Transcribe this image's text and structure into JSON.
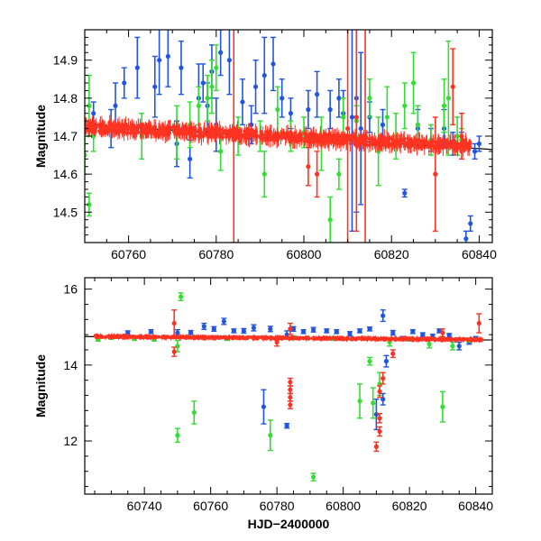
{
  "chart_data": [
    {
      "type": "scatter",
      "panel": "top",
      "title": "",
      "xlabel": "",
      "ylabel": "Magnitude",
      "xlim": [
        60750,
        60843
      ],
      "ylim": [
        14.98,
        14.42
      ],
      "y_inverted": true,
      "x_ticks": [
        60760,
        60780,
        60800,
        60820,
        60840
      ],
      "y_ticks": [
        14.5,
        14.6,
        14.7,
        14.8,
        14.9
      ],
      "grid": false,
      "legend": "none",
      "trend_line": {
        "x": [
          60750,
          60843
        ],
        "y": [
          14.73,
          14.665
        ]
      },
      "series": [
        {
          "color": "#2255dd",
          "points": [
            [
              60752,
              14.76,
              0.03
            ],
            [
              60756,
              14.72,
              0.05
            ],
            [
              60757,
              14.78,
              0.06
            ],
            [
              60759,
              14.84,
              0.04
            ],
            [
              60762,
              14.88,
              0.08
            ],
            [
              60766,
              14.83,
              0.08
            ],
            [
              60767,
              14.9,
              0.09
            ],
            [
              60769,
              14.91,
              0.08
            ],
            [
              60771,
              14.68,
              0.06
            ],
            [
              60772,
              14.88,
              0.07
            ],
            [
              60774,
              14.64,
              0.05
            ],
            [
              60776,
              14.8,
              0.09
            ],
            [
              60777,
              14.84,
              0.05
            ],
            [
              60778,
              14.78,
              0.06
            ],
            [
              60779,
              14.87,
              0.07
            ],
            [
              60780,
              14.73,
              0.07
            ],
            [
              60781,
              14.92,
              0.06
            ],
            [
              60783,
              14.9,
              0.09
            ],
            [
              60786,
              14.79,
              0.06
            ],
            [
              60788,
              14.73,
              0.05
            ],
            [
              60789,
              14.83,
              0.07
            ],
            [
              60791,
              14.86,
              0.1
            ],
            [
              60793,
              14.89,
              0.07
            ],
            [
              60795,
              14.8,
              0.05
            ],
            [
              60797,
              14.76,
              0.04
            ],
            [
              60801,
              14.77,
              0.05
            ],
            [
              60803,
              14.81,
              0.06
            ],
            [
              60806,
              14.77,
              0.05
            ],
            [
              60808,
              14.8,
              0.05
            ],
            [
              60809,
              14.76,
              0.06
            ],
            [
              60811,
              14.75,
              0.3
            ],
            [
              60812,
              14.8,
              0.3
            ],
            [
              60813,
              14.72,
              0.2
            ],
            [
              60815,
              14.75,
              0.04
            ],
            [
              60818,
              14.73,
              0.04
            ],
            [
              60823,
              14.55,
              0.01
            ],
            [
              60826,
              14.72,
              0.05
            ],
            [
              60829,
              14.69,
              0.03
            ],
            [
              60832,
              14.72,
              0.05
            ],
            [
              60834,
              14.68,
              0.03
            ],
            [
              60836,
              14.69,
              0.02
            ],
            [
              60837,
              14.43,
              0.02
            ],
            [
              60838,
              14.47,
              0.02
            ],
            [
              60839,
              14.66,
              0.02
            ],
            [
              60840,
              14.68,
              0.02
            ]
          ]
        },
        {
          "color": "#33dd33",
          "points": [
            [
              60750,
              14.65,
              0.05
            ],
            [
              60751,
              14.52,
              0.03
            ],
            [
              60751,
              14.78,
              0.08
            ],
            [
              60752,
              14.7,
              0.04
            ],
            [
              60763,
              14.7,
              0.06
            ],
            [
              60771,
              14.71,
              0.07
            ],
            [
              60774,
              14.73,
              0.06
            ],
            [
              60776,
              14.78,
              0.05
            ],
            [
              60778,
              14.8,
              0.06
            ],
            [
              60779,
              14.83,
              0.07
            ],
            [
              60780,
              14.88,
              0.06
            ],
            [
              60781,
              14.66,
              0.05
            ],
            [
              60785,
              14.7,
              0.05
            ],
            [
              60790,
              14.7,
              0.04
            ],
            [
              60791,
              14.6,
              0.06
            ],
            [
              60794,
              14.77,
              0.06
            ],
            [
              60797,
              14.7,
              0.04
            ],
            [
              60800,
              14.71,
              0.04
            ],
            [
              60804,
              14.68,
              0.07
            ],
            [
              60806,
              14.48,
              0.06
            ],
            [
              60808,
              14.6,
              0.04
            ],
            [
              60809,
              14.75,
              0.05
            ],
            [
              60812,
              14.74,
              0.04
            ],
            [
              60815,
              14.8,
              0.05
            ],
            [
              60817,
              14.66,
              0.09
            ],
            [
              60819,
              14.75,
              0.08
            ],
            [
              60821,
              14.7,
              0.06
            ],
            [
              60823,
              14.78,
              0.06
            ],
            [
              60825,
              14.84,
              0.08
            ],
            [
              60826,
              14.73,
              0.05
            ],
            [
              60829,
              14.69,
              0.04
            ],
            [
              60832,
              14.78,
              0.07
            ],
            [
              60833,
              14.8,
              0.15
            ],
            [
              60835,
              14.7,
              0.05
            ],
            [
              60836,
              14.69,
              0.03
            ]
          ]
        },
        {
          "color": "#ff3322",
          "points": [
            [
              60784,
              14.72,
              0.3
            ],
            [
              60801,
              14.62,
              0.05
            ],
            [
              60803,
              14.6,
              0.06
            ],
            [
              60810,
              14.72,
              0.3
            ],
            [
              60812,
              14.75,
              0.3
            ],
            [
              60814,
              14.7,
              0.3
            ],
            [
              60830,
              14.6,
              0.15
            ],
            [
              60834,
              14.83,
              0.1
            ],
            [
              60836,
              14.7,
              0.06
            ]
          ]
        }
      ],
      "dense_band": {
        "color": "#ff3322",
        "x_start": 60750,
        "x_end": 60838,
        "y_start": 14.725,
        "y_end": 14.675,
        "scatter": 0.012,
        "error": 0.015
      }
    },
    {
      "type": "scatter",
      "panel": "bottom",
      "title": "",
      "xlabel": "HJD−2400000",
      "ylabel": "Magnitude",
      "xlim": [
        60722,
        60845
      ],
      "ylim": [
        16.3,
        10.6
      ],
      "y_inverted": true,
      "x_ticks": [
        60740,
        60760,
        60780,
        60800,
        60820,
        60840
      ],
      "y_ticks": [
        12,
        14,
        16
      ],
      "grid": false,
      "legend": "none",
      "trend_line": {
        "x": [
          60722,
          60845
        ],
        "y": [
          14.75,
          14.66
        ]
      },
      "series": [
        {
          "color": "#2255dd",
          "points": [
            [
              60735,
              14.85,
              0.05
            ],
            [
              60742,
              14.88,
              0.05
            ],
            [
              60750,
              14.85,
              0.08
            ],
            [
              60754,
              14.86,
              0.05
            ],
            [
              60758,
              15.02,
              0.08
            ],
            [
              60761,
              14.95,
              0.06
            ],
            [
              60764,
              15.15,
              0.08
            ],
            [
              60767,
              14.9,
              0.05
            ],
            [
              60770,
              14.9,
              0.06
            ],
            [
              60773,
              14.98,
              0.08
            ],
            [
              60776,
              12.9,
              0.45
            ],
            [
              60778,
              14.95,
              0.07
            ],
            [
              60783,
              12.4,
              0.06
            ],
            [
              60783,
              14.8,
              0.1
            ],
            [
              60785,
              14.95,
              0.06
            ],
            [
              60788,
              14.88,
              0.05
            ],
            [
              60791,
              14.93,
              0.06
            ],
            [
              60795,
              14.9,
              0.05
            ],
            [
              60798,
              14.88,
              0.05
            ],
            [
              60802,
              14.82,
              0.06
            ],
            [
              60805,
              14.9,
              0.05
            ],
            [
              60808,
              14.95,
              0.05
            ],
            [
              60810,
              12.7,
              0.4
            ],
            [
              60812,
              13.1,
              0.15
            ],
            [
              60812,
              15.3,
              0.15
            ],
            [
              60813,
              14.1,
              0.15
            ],
            [
              60815,
              14.85,
              0.06
            ],
            [
              60818,
              14.7,
              0.05
            ],
            [
              60821,
              14.88,
              0.05
            ],
            [
              60824,
              14.8,
              0.05
            ],
            [
              60827,
              14.75,
              0.06
            ],
            [
              60829,
              14.9,
              0.05
            ],
            [
              60832,
              14.78,
              0.05
            ],
            [
              60835,
              14.5,
              0.1
            ],
            [
              60838,
              14.6,
              0.05
            ],
            [
              60840,
              14.7,
              0.05
            ]
          ]
        },
        {
          "color": "#33dd33",
          "points": [
            [
              60726,
              14.68,
              0.05
            ],
            [
              60730,
              14.72,
              0.04
            ],
            [
              60737,
              14.7,
              0.05
            ],
            [
              60743,
              14.68,
              0.05
            ],
            [
              60750,
              12.15,
              0.18
            ],
            [
              60750,
              14.5,
              0.15
            ],
            [
              60751,
              15.8,
              0.1
            ],
            [
              60755,
              12.75,
              0.3
            ],
            [
              60758,
              14.72,
              0.05
            ],
            [
              60765,
              14.7,
              0.05
            ],
            [
              60778,
              12.15,
              0.4
            ],
            [
              60785,
              14.72,
              0.05
            ],
            [
              60791,
              11.05,
              0.1
            ],
            [
              60797,
              14.7,
              0.05
            ],
            [
              60805,
              13.05,
              0.45
            ],
            [
              60808,
              14.1,
              0.1
            ],
            [
              60809,
              13.0,
              0.4
            ],
            [
              60811,
              13.5,
              0.3
            ],
            [
              60814,
              14.6,
              0.1
            ],
            [
              60820,
              14.68,
              0.05
            ],
            [
              60826,
              14.55,
              0.1
            ],
            [
              60830,
              12.9,
              0.4
            ],
            [
              60833,
              14.5,
              0.1
            ],
            [
              60838,
              14.65,
              0.05
            ]
          ]
        },
        {
          "color": "#ff3322",
          "points": [
            [
              60749,
              15.1,
              0.35
            ],
            [
              60749,
              14.35,
              0.12
            ],
            [
              60780,
              14.6,
              0.1
            ],
            [
              60784,
              12.95,
              0.1
            ],
            [
              60784,
              13.15,
              0.1
            ],
            [
              60784,
              13.35,
              0.1
            ],
            [
              60784,
              13.55,
              0.1
            ],
            [
              60784,
              14.95,
              0.15
            ],
            [
              60810,
              11.85,
              0.12
            ],
            [
              60811,
              12.25,
              0.12
            ],
            [
              60811,
              12.6,
              0.12
            ],
            [
              60811,
              13.3,
              0.15
            ],
            [
              60812,
              13.65,
              0.15
            ],
            [
              60815,
              14.3,
              0.1
            ],
            [
              60830,
              14.85,
              0.1
            ],
            [
              60841,
              15.1,
              0.25
            ]
          ]
        }
      ],
      "dense_band": {
        "color": "#ff3322",
        "x_start": 60725,
        "x_end": 60842,
        "y_start": 14.75,
        "y_end": 14.67,
        "scatter": 0.02,
        "error": 0.05
      }
    }
  ]
}
